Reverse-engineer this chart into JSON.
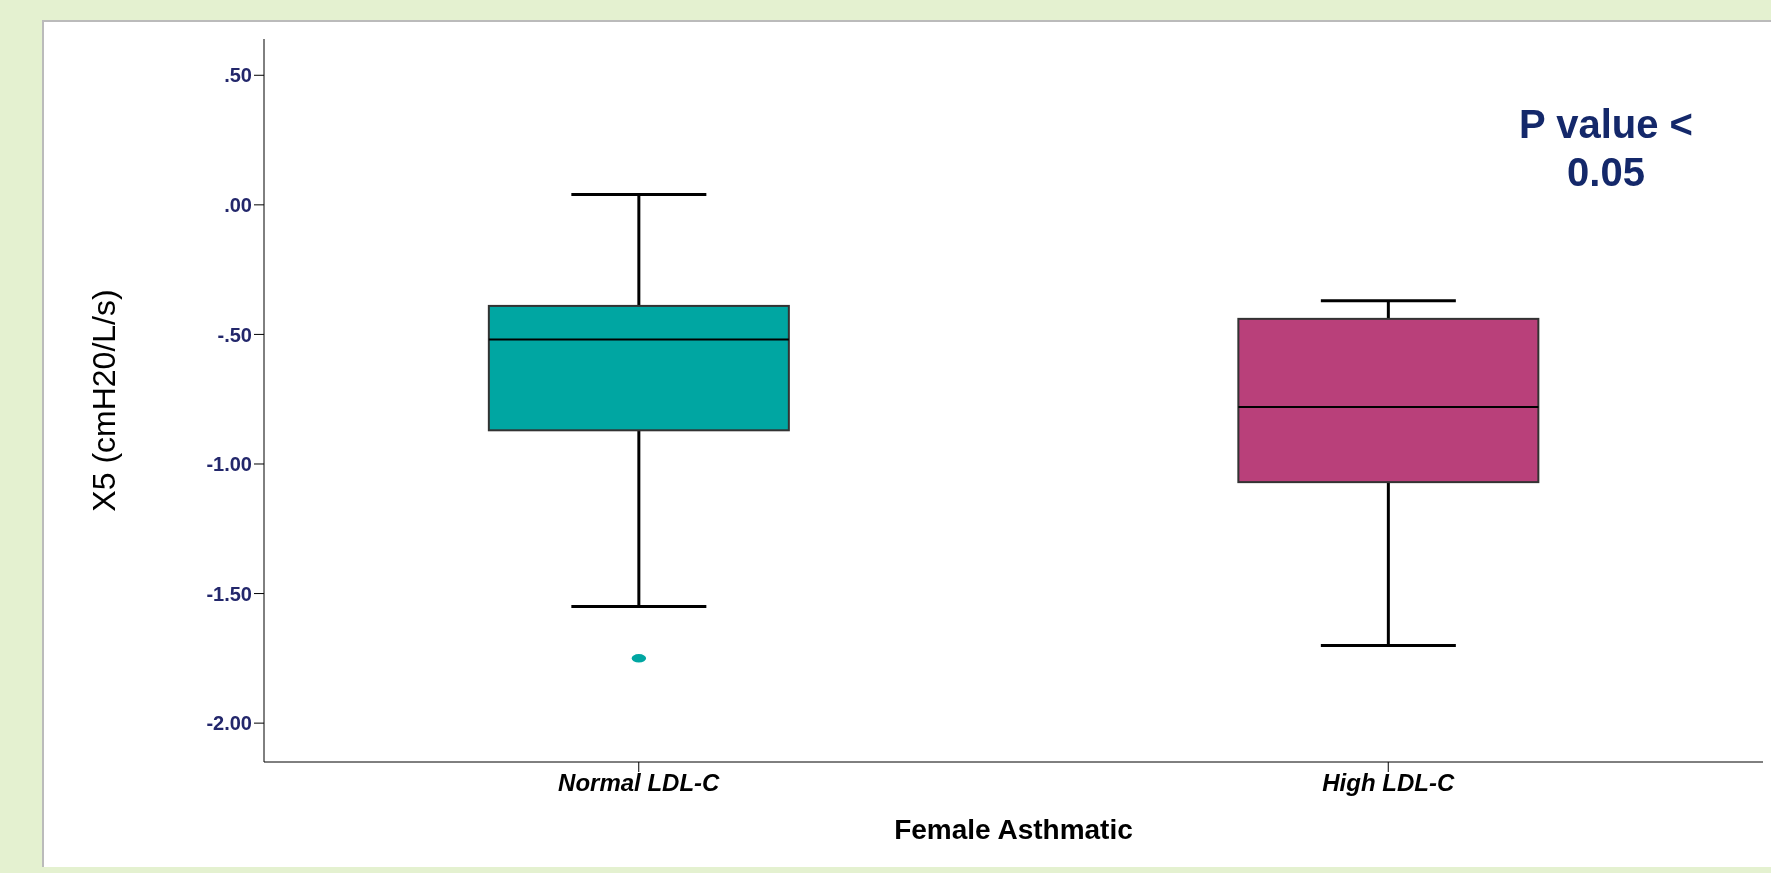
{
  "chart_data": {
    "type": "box",
    "categories": [
      "Normal LDL-C",
      "High LDL-C"
    ],
    "colors": [
      "#00a6a2",
      "#b9407a"
    ],
    "boxes": [
      {
        "low": -1.55,
        "q1": -0.87,
        "median": -0.52,
        "q3": -0.39,
        "high": 0.04,
        "outliers": [
          -1.75
        ]
      },
      {
        "low": -1.7,
        "q1": -1.07,
        "median": -0.78,
        "q3": -0.44,
        "high": -0.37
      }
    ],
    "xlabel": "Female Asthmatic",
    "ylabel": "X5 (cmH20/L/s)",
    "ylim": [
      -2.15,
      0.64
    ],
    "yticks": [
      {
        "value": 0.5,
        "label": ".50"
      },
      {
        "value": 0,
        "label": ".00"
      },
      {
        "value": -0.5,
        "label": "-.50"
      },
      {
        "value": -1,
        "label": "-1.00"
      },
      {
        "value": -1.5,
        "label": "-1.50"
      },
      {
        "value": -2,
        "label": "-2.00"
      }
    ],
    "grid": false,
    "legend": false,
    "annotations": [
      "P value < 0.05"
    ]
  }
}
